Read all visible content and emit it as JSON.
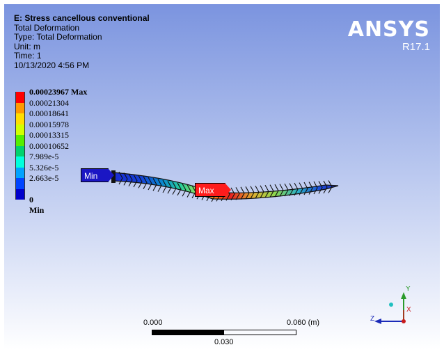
{
  "header": {
    "title": "E: Stress cancellous conventional",
    "line1": "Total Deformation",
    "line2": "Type: Total Deformation",
    "line3": "Unit: m",
    "line4": "Time: 1",
    "line5": "10/13/2020 4:56 PM"
  },
  "logo": {
    "name": "ANSYS",
    "version": "R17.1"
  },
  "legend": {
    "max_label": "0.00023967 Max",
    "labels": [
      "0.00021304",
      "0.00018641",
      "0.00015978",
      "0.00013315",
      "0.00010652",
      "7.989e-5",
      "5.326e-5",
      "2.663e-5"
    ],
    "min_label": "0 Min",
    "colors": [
      "#ff0000",
      "#ff9900",
      "#ffde00",
      "#d2ff00",
      "#55ee00",
      "#00d26e",
      "#00ffdd",
      "#00a2ff",
      "#0044ff",
      "#0000cc"
    ]
  },
  "probes": {
    "min_label": "Min",
    "max_label": "Max"
  },
  "scalebar": {
    "left_label": "0.000",
    "right_label": "0.060 (m)",
    "mid_label": "0.030"
  },
  "triad": {
    "y_label": "Y",
    "x_label": "X",
    "z_label": "Z"
  }
}
